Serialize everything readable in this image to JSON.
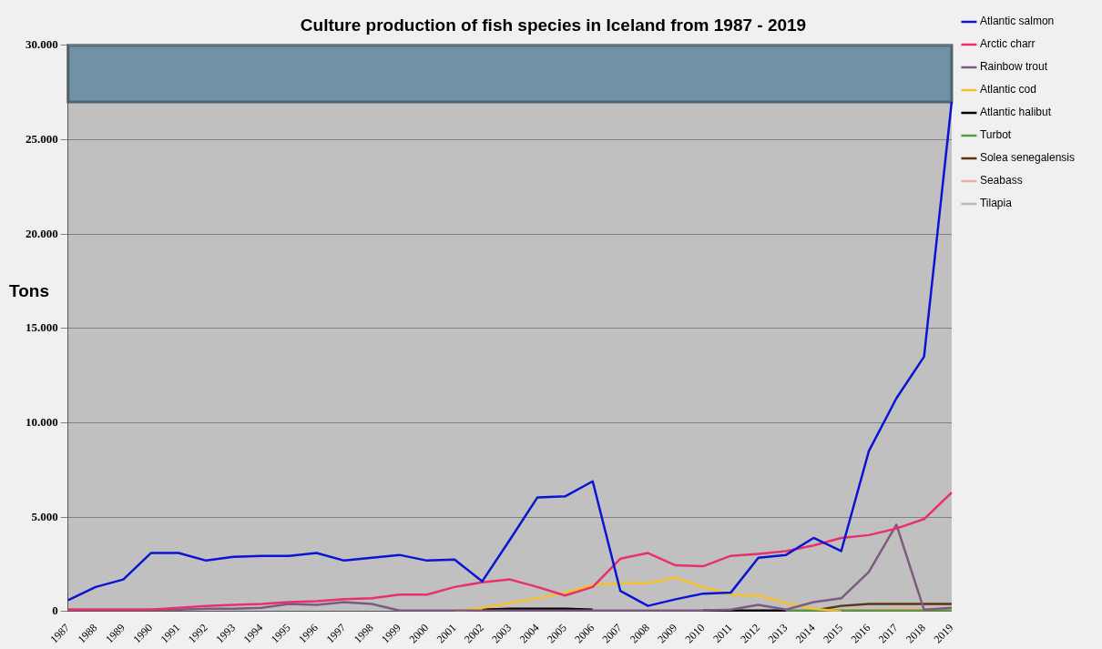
{
  "chart_data": {
    "type": "line",
    "title": "Culture production of fish species in Iceland from 1987 - 2019",
    "ylabel": "Tons",
    "categories": [
      "1987",
      "1988",
      "1989",
      "1990",
      "1991",
      "1992",
      "1993",
      "1994",
      "1995",
      "1996",
      "1997",
      "1998",
      "1999",
      "2000",
      "2001",
      "2002",
      "2003",
      "2004",
      "2005",
      "2006",
      "2007",
      "2008",
      "2009",
      "2010",
      "2011",
      "2012",
      "2013",
      "2014",
      "2015",
      "2016",
      "2017",
      "2018",
      "2019"
    ],
    "ylim": [
      0,
      30000
    ],
    "yticks": [
      0,
      {
        "value": 5000,
        "label": "5.000"
      },
      {
        "value": 10000,
        "label": "10.000"
      },
      {
        "value": 15000,
        "label": "15.000"
      },
      {
        "value": 20000,
        "label": "20.000"
      },
      {
        "value": 25000,
        "label": "25.000"
      },
      {
        "value": 30000,
        "label": "30.000"
      }
    ],
    "grid": "y",
    "legend": "right",
    "bands": [
      {
        "axis": "y",
        "from": 27000,
        "to": 30000,
        "color": "#7191a5"
      }
    ],
    "series": [
      {
        "name": "Atlantic salmon",
        "color": "#0a14d2",
        "values": [
          600,
          1300,
          1700,
          3100,
          3100,
          2700,
          2900,
          2950,
          2950,
          3100,
          2700,
          2850,
          3000,
          2700,
          2750,
          1600,
          3800,
          6050,
          6100,
          6900,
          1100,
          300,
          650,
          950,
          1000,
          2850,
          3000,
          3900,
          3200,
          8500,
          11300,
          13500,
          27000
        ]
      },
      {
        "name": "Arctic charr",
        "color": "#e8306a",
        "values": [
          100,
          100,
          100,
          100,
          200,
          300,
          350,
          400,
          500,
          550,
          650,
          700,
          900,
          900,
          1300,
          1550,
          1700,
          1300,
          850,
          1300,
          2800,
          3100,
          2450,
          2400,
          2950,
          3050,
          3200,
          3500,
          3900,
          4050,
          4400,
          4900,
          6300
        ]
      },
      {
        "name": "Rainbow trout",
        "color": "#7e5a80",
        "values": [
          100,
          100,
          100,
          100,
          100,
          150,
          150,
          200,
          400,
          350,
          500,
          400,
          50,
          50,
          50,
          50,
          50,
          50,
          50,
          50,
          50,
          50,
          50,
          50,
          100,
          350,
          100,
          500,
          700,
          2100,
          4600,
          100,
          200
        ]
      },
      {
        "name": "Atlantic cod",
        "color": "#f5c030",
        "values": [
          null,
          null,
          null,
          null,
          null,
          null,
          null,
          null,
          null,
          null,
          null,
          null,
          null,
          null,
          0,
          200,
          450,
          700,
          1000,
          1400,
          1500,
          1500,
          1800,
          1300,
          900,
          850,
          450,
          150,
          0,
          null,
          null,
          null,
          null
        ]
      },
      {
        "name": "Atlantic halibut",
        "color": "#000000",
        "values": [
          null,
          null,
          null,
          null,
          null,
          null,
          null,
          null,
          null,
          null,
          null,
          null,
          null,
          null,
          null,
          100,
          150,
          150,
          150,
          100,
          null,
          null,
          null,
          50,
          50,
          50,
          50,
          null,
          null,
          null,
          null,
          null,
          null
        ]
      },
      {
        "name": "Turbot",
        "color": "#5a9a40",
        "values": [
          null,
          null,
          null,
          null,
          null,
          null,
          null,
          null,
          null,
          null,
          null,
          null,
          null,
          null,
          null,
          null,
          null,
          null,
          null,
          null,
          null,
          null,
          null,
          null,
          null,
          null,
          50,
          50,
          50,
          50,
          50,
          50,
          50
        ]
      },
      {
        "name": "Solea senegalensis",
        "color": "#5a3612",
        "values": [
          null,
          null,
          null,
          null,
          null,
          null,
          null,
          null,
          null,
          null,
          null,
          null,
          null,
          null,
          null,
          null,
          null,
          null,
          null,
          null,
          null,
          null,
          null,
          null,
          null,
          null,
          null,
          50,
          300,
          400,
          400,
          400,
          400
        ]
      },
      {
        "name": "Seabass",
        "color": "#e8b098",
        "values": [
          null,
          null,
          null,
          null,
          null,
          null,
          null,
          null,
          null,
          null,
          null,
          null,
          null,
          null,
          null,
          null,
          null,
          null,
          null,
          null,
          null,
          null,
          null,
          null,
          null,
          null,
          null,
          null,
          100,
          100,
          150,
          150,
          150
        ]
      },
      {
        "name": "Tilapia",
        "color": "#b8b8b8",
        "values": [
          null,
          null,
          null,
          null,
          null,
          null,
          null,
          null,
          null,
          null,
          null,
          null,
          null,
          null,
          null,
          null,
          null,
          null,
          null,
          null,
          null,
          null,
          null,
          null,
          null,
          null,
          null,
          null,
          null,
          null,
          null,
          null,
          null
        ]
      }
    ]
  }
}
